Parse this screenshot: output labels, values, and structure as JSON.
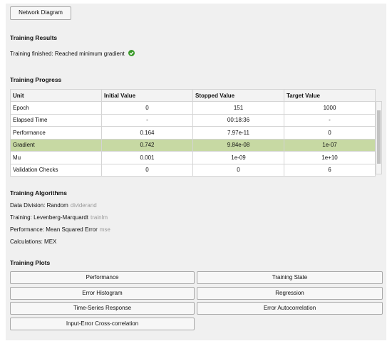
{
  "network_diagram_button": "Network Diagram",
  "training_results": {
    "title": "Training Results",
    "status": "Training finished: Reached minimum gradient"
  },
  "training_progress": {
    "title": "Training Progress",
    "table": {
      "header": [
        "Unit",
        "Initial Value",
        "Stopped Value",
        "Target Value"
      ],
      "rows": [
        [
          "Epoch",
          "0",
          "151",
          "1000"
        ],
        [
          "Elapsed Time",
          "-",
          "00:18:36",
          "-"
        ],
        [
          "Performance",
          "0.164",
          "7.97e-11",
          "0"
        ],
        [
          "Gradient",
          "0.742",
          "9.84e-08",
          "1e-07"
        ],
        [
          "Mu",
          "0.001",
          "1e-09",
          "1e+10"
        ],
        [
          "Validation Checks",
          "0",
          "0",
          "6"
        ]
      ],
      "highlighted_row": 3
    }
  },
  "training_algorithms": {
    "title": "Training Algorithms",
    "rows": [
      {
        "label": "Data Division:",
        "value": "Random",
        "function": "dividerand"
      },
      {
        "label": "Training:",
        "value": "Levenberg-Marquardt",
        "function": "trainlm"
      },
      {
        "label": "Performance:",
        "value": "Mean Squared Error",
        "function": "mse"
      },
      {
        "label": "Calculations:",
        "value": "MEX"
      }
    ]
  },
  "training_plots": {
    "title": "Training Plots",
    "buttons": [
      "Performance",
      "Training State",
      "Error Histogram",
      "Regression",
      "Time-Series Response",
      "Error Autocorrelation",
      "Input-Error Cross-correlation"
    ]
  }
}
